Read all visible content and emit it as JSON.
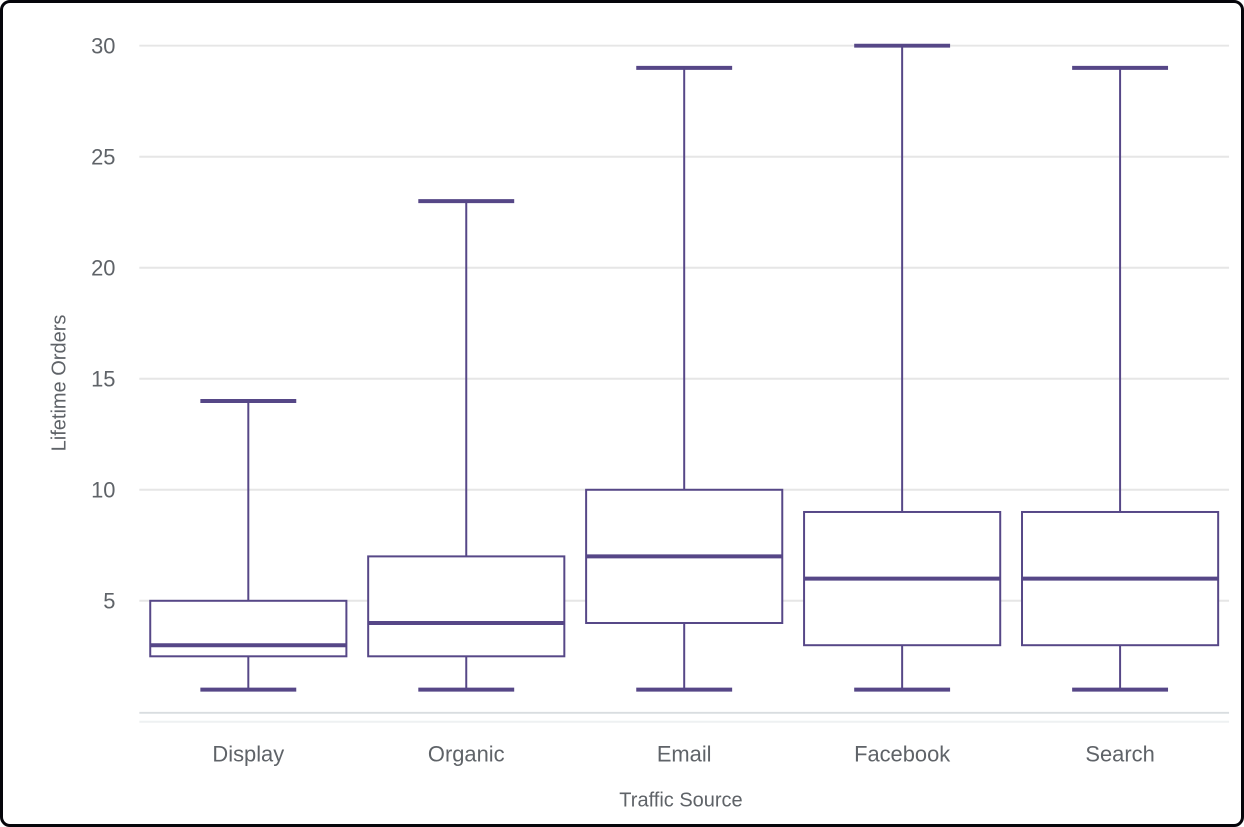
{
  "chart_data": {
    "type": "boxplot",
    "title": "",
    "xlabel": "Traffic Source",
    "ylabel": "Lifetime Orders",
    "categories": [
      "Display",
      "Organic",
      "Email",
      "Facebook",
      "Search"
    ],
    "series": [
      {
        "name": "Lifetime Orders",
        "boxes": [
          {
            "category": "Display",
            "min": 1,
            "q1": 2.5,
            "median": 3,
            "q3": 5,
            "max": 14
          },
          {
            "category": "Organic",
            "min": 1,
            "q1": 2.5,
            "median": 4,
            "q3": 7,
            "max": 23
          },
          {
            "category": "Email",
            "min": 1,
            "q1": 4,
            "median": 7,
            "q3": 10,
            "max": 29
          },
          {
            "category": "Facebook",
            "min": 1,
            "q1": 3,
            "median": 6,
            "q3": 9,
            "max": 30
          },
          {
            "category": "Search",
            "min": 1,
            "q1": 3,
            "median": 6,
            "q3": 9,
            "max": 29
          }
        ]
      }
    ],
    "ylim": [
      0,
      31
    ],
    "yticks": [
      5,
      10,
      15,
      20,
      25,
      30
    ],
    "grid": true,
    "legend": "none",
    "colors": {
      "box_stroke": "#564787",
      "box_fill": "#ffffff",
      "grid_line": "#e6e6e6",
      "axis_text": "#5f6368",
      "baseline_1": "#d9dde0",
      "baseline_2": "#eef1f2",
      "frame_border": "#05050a"
    }
  }
}
